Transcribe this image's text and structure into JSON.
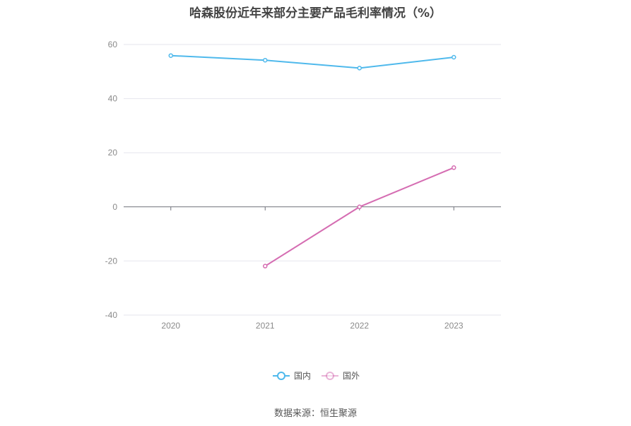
{
  "chart_data": {
    "type": "line",
    "title": "哈森股份近年来部分主要产品毛利率情况（%）",
    "xlabel": "",
    "ylabel": "",
    "categories": [
      "2020",
      "2021",
      "2022",
      "2023"
    ],
    "ylim": [
      -40,
      60
    ],
    "yticks": [
      60,
      40,
      20,
      0,
      -20,
      -40
    ],
    "grid": true,
    "legend_position": "bottom",
    "series": [
      {
        "name": "国内",
        "color": "#4fb9ec",
        "values": [
          55.9,
          54.2,
          51.3,
          55.3
        ]
      },
      {
        "name": "国外",
        "color": "#d56db2",
        "values": [
          null,
          -21.9,
          0,
          14.5
        ]
      }
    ]
  },
  "source_label": "数据来源：恒生聚源"
}
